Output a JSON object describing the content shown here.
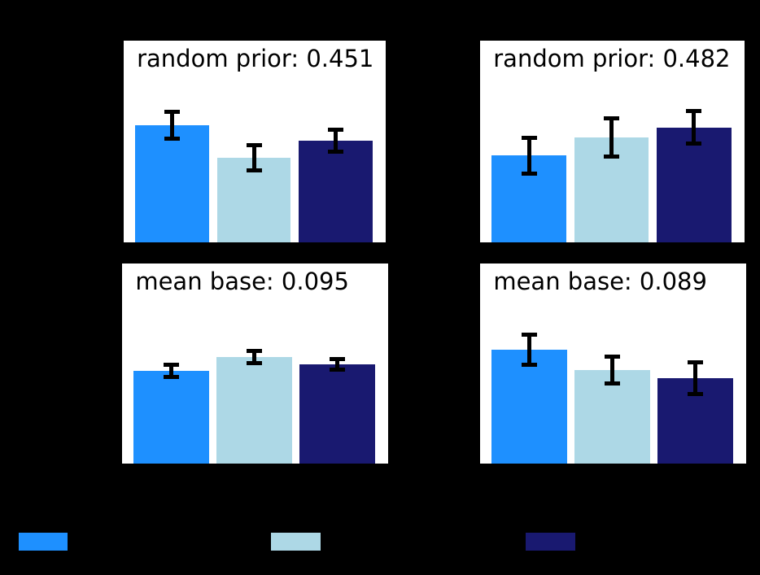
{
  "figure": {
    "background_color": "#000000",
    "panel_background_color": "#ffffff",
    "text_color": "#000000",
    "note": "Axis tick labels, axis titles and legend label text are drawn in black on the black background and are not visible in the screenshot."
  },
  "legend": {
    "swatches": [
      {
        "name": "dodgerblue-series",
        "color": "#1e90ff"
      },
      {
        "name": "lightblue-series",
        "color": "#add8e6"
      },
      {
        "name": "midnightblue-series",
        "color": "#191970"
      }
    ]
  },
  "chart_data": [
    {
      "type": "bar",
      "panel": "top-left",
      "title": "random prior: 0.451",
      "ylim": [
        0,
        1
      ],
      "units": "bar height as fraction of panel height (y-axis scale not visible)",
      "grid": false,
      "series": [
        {
          "color_name": "dodgerblue",
          "color": "#1e90ff",
          "value": 0.581,
          "error": 0.067
        },
        {
          "color_name": "lightblue",
          "color": "#add8e6",
          "value": 0.419,
          "error": 0.063
        },
        {
          "color_name": "midnightblue",
          "color": "#191970",
          "value": 0.504,
          "error": 0.058
        }
      ]
    },
    {
      "type": "bar",
      "panel": "top-right",
      "title": "random prior: 0.482",
      "ylim": [
        0,
        1
      ],
      "units": "bar height as fraction of panel height (y-axis scale not visible)",
      "grid": false,
      "series": [
        {
          "color_name": "dodgerblue",
          "color": "#1e90ff",
          "value": 0.431,
          "error": 0.091
        },
        {
          "color_name": "lightblue",
          "color": "#add8e6",
          "value": 0.52,
          "error": 0.097
        },
        {
          "color_name": "midnightblue",
          "color": "#191970",
          "value": 0.569,
          "error": 0.083
        }
      ]
    },
    {
      "type": "bar",
      "panel": "bottom-left",
      "title": "mean base: 0.095",
      "ylim": [
        0,
        1
      ],
      "units": "bar height as fraction of panel height (y-axis scale not visible)",
      "grid": false,
      "series": [
        {
          "color_name": "dodgerblue",
          "color": "#1e90ff",
          "value": 0.463,
          "error": 0.033
        },
        {
          "color_name": "lightblue",
          "color": "#add8e6",
          "value": 0.533,
          "error": 0.033
        },
        {
          "color_name": "midnightblue",
          "color": "#191970",
          "value": 0.496,
          "error": 0.028
        }
      ]
    },
    {
      "type": "bar",
      "panel": "bottom-right",
      "title": "mean base: 0.089",
      "ylim": [
        0,
        1
      ],
      "units": "bar height as fraction of panel height (y-axis scale not visible)",
      "grid": false,
      "series": [
        {
          "color_name": "dodgerblue",
          "color": "#1e90ff",
          "value": 0.569,
          "error": 0.079
        },
        {
          "color_name": "lightblue",
          "color": "#add8e6",
          "value": 0.467,
          "error": 0.069
        },
        {
          "color_name": "midnightblue",
          "color": "#191970",
          "value": 0.427,
          "error": 0.081
        }
      ]
    }
  ]
}
